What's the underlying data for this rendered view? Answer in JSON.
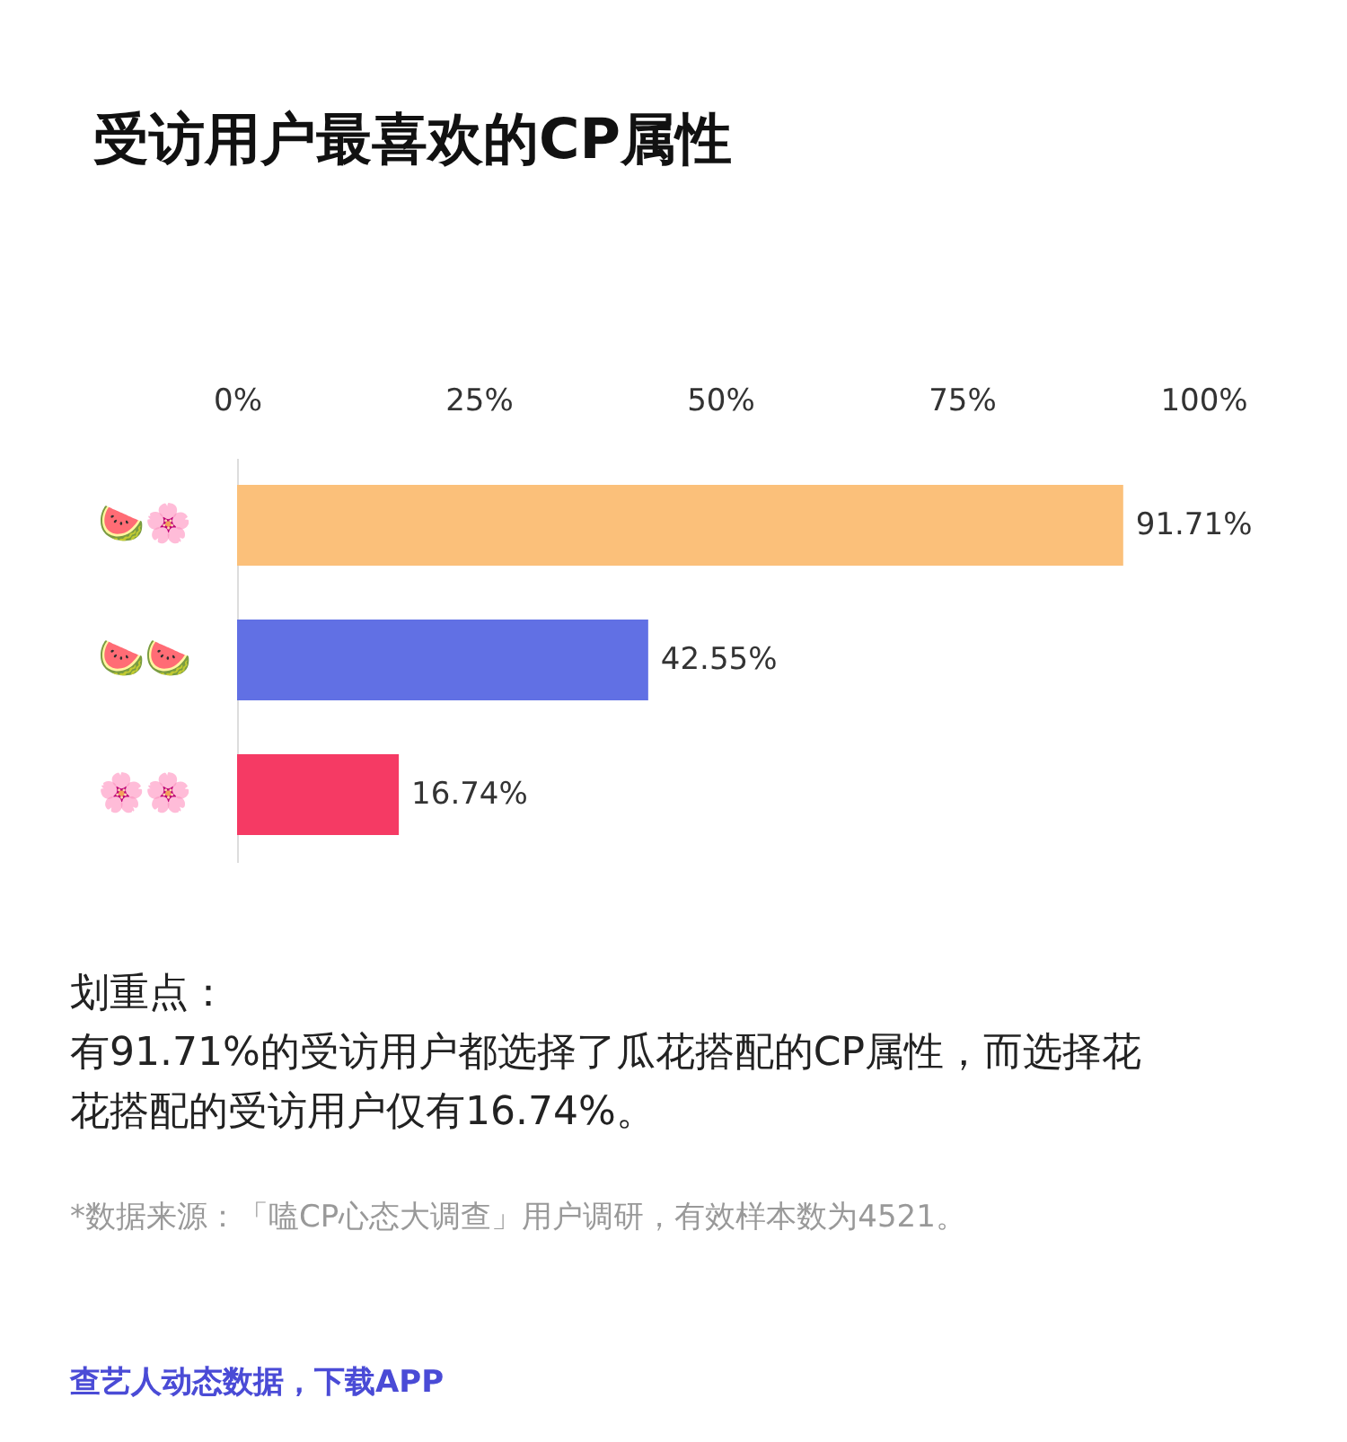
{
  "chart_data": {
    "type": "bar",
    "orientation": "horizontal",
    "title": "受访用户最喜欢的CP属性",
    "categories": [
      "🍉🌸",
      "🍉🍉",
      "🌸🌸"
    ],
    "values": [
      91.71,
      42.55,
      16.74
    ],
    "colors": [
      "#fbc07a",
      "#6170e4",
      "#f53a64"
    ],
    "value_labels": [
      "91.71%",
      "42.55%",
      "16.74%"
    ],
    "xlim": [
      0,
      100
    ],
    "xticks": [
      {
        "value": 0,
        "label": "0%"
      },
      {
        "value": 25,
        "label": "25%"
      },
      {
        "value": 50,
        "label": "50%"
      },
      {
        "value": 75,
        "label": "75%"
      },
      {
        "value": 100,
        "label": "100%"
      }
    ],
    "annotations": [
      "划重点：",
      "有91.71%的受访用户都选择了瓜花搭配的CP属性，而选择花花搭配的受访用户仅有16.74%。",
      "*数据来源：「嗑CP心态大调查」用户调研，有效样本数为4521。",
      "查艺人动态数据，下载APP"
    ]
  }
}
